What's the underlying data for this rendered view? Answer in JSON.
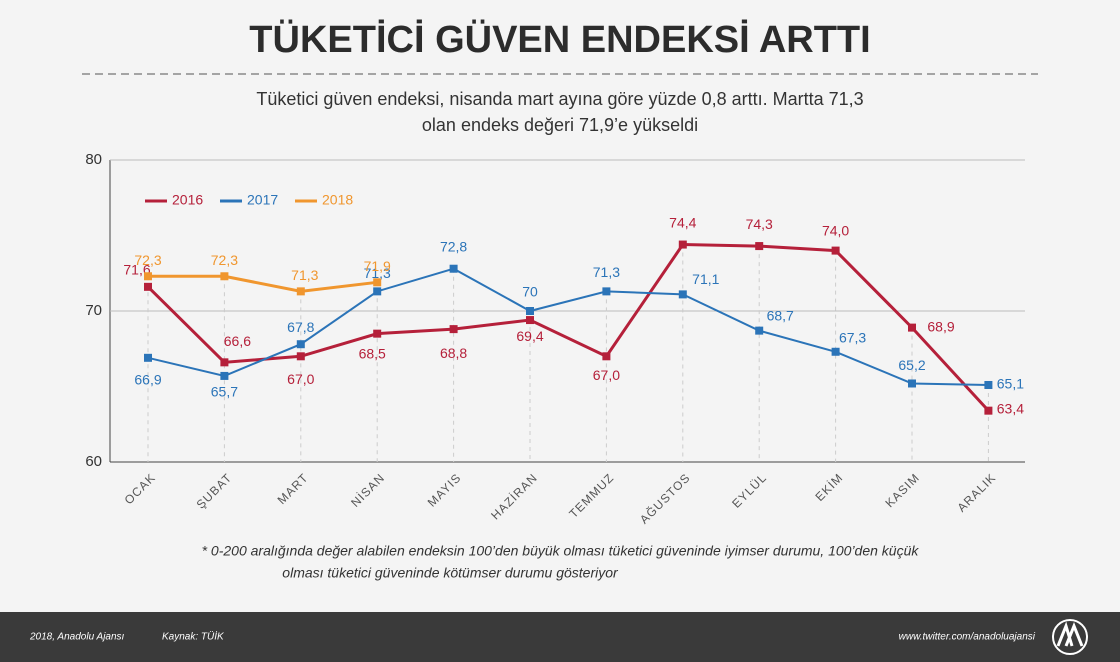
{
  "chart_data": {
    "type": "line",
    "title": "TÜKETİCİ GÜVEN ENDEKSİ ARTTI",
    "subtitle": [
      "Tüketici güven endeksi, nisanda mart ayına göre yüzde 0,8 arttı. Martta 71,3",
      "olan endeks değeri 71,9’e yükseldi"
    ],
    "categories": [
      "OCAK",
      "ŞUBAT",
      "MART",
      "NİSAN",
      "MAYIS",
      "HAZİRAN",
      "TEMMUZ",
      "AĞUSTOS",
      "EYLÜL",
      "EKİM",
      "KASIM",
      "ARALIK"
    ],
    "series": [
      {
        "name": "2016",
        "color": "#b5203a",
        "values": [
          71.6,
          66.6,
          67.0,
          68.5,
          68.8,
          69.4,
          67.0,
          74.4,
          74.3,
          74.0,
          68.9,
          63.4
        ],
        "value_labels": [
          "71,6",
          "66,6",
          "67,0",
          "68,5",
          "68,8",
          "69,4",
          "67,0",
          "74,4",
          "74,3",
          "74,0",
          "68,9",
          "63,4"
        ]
      },
      {
        "name": "2017",
        "color": "#2b74b8",
        "values": [
          66.9,
          65.7,
          67.8,
          71.3,
          72.8,
          70,
          71.3,
          71.1,
          68.7,
          67.3,
          65.2,
          65.1
        ],
        "value_labels": [
          "66,9",
          "65,7",
          "67,8",
          "71,3",
          "72,8",
          "70",
          "71,3",
          "71,1",
          "68,7",
          "67,3",
          "65,2",
          "65,1"
        ]
      },
      {
        "name": "2018",
        "color": "#f0962e",
        "values": [
          72.3,
          72.3,
          71.3,
          71.9,
          null,
          null,
          null,
          null,
          null,
          null,
          null,
          null
        ],
        "value_labels": [
          "72,3",
          "72,3",
          "71,3",
          "71,9",
          null,
          null,
          null,
          null,
          null,
          null,
          null,
          null
        ]
      }
    ],
    "ylim": [
      60,
      80
    ],
    "yticks": [
      60,
      70,
      80
    ],
    "grid": true,
    "footnote": [
      "* 0-200 aralığında değer alabilen endeksin 100’den büyük olması tüketici güveninde iyimser durumu, 100’den küçük",
      "olması tüketici güveninde kötümser durumu gösteriyor"
    ],
    "footer": {
      "copyright": "2018, Anadolu Ajansı",
      "source": "Kaynak: TÜİK",
      "twitter": "www.twitter.com/anadoluajansi"
    }
  }
}
